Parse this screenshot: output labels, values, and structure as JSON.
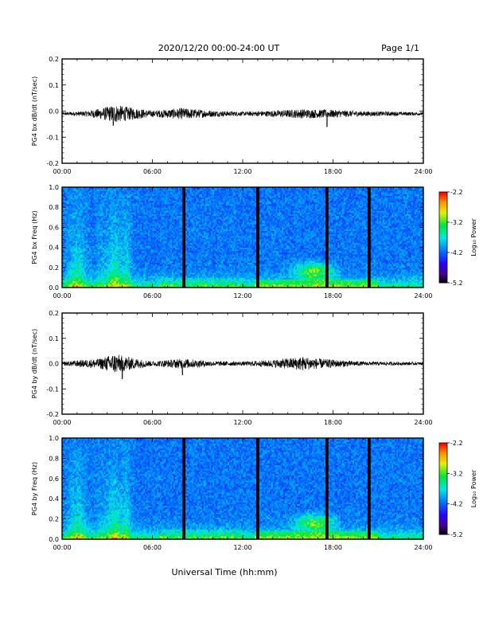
{
  "header": {
    "title": "2020/12/20  00:00-24:00 UT",
    "page": "Page 1/1"
  },
  "footer": {
    "xlabel": "Universal Time (hh:mm)"
  },
  "colorbar": {
    "label": "Log₁₀ Power",
    "ticks": [
      "-2.2",
      "-3.2",
      "-4.2",
      "-5.2"
    ]
  },
  "chart_data": [
    {
      "type": "line",
      "ylabel": "PG4 bx dB/dt (nT/sec)",
      "ylim": [
        -0.2,
        0.2
      ],
      "yticks": [
        "0.2",
        "0.1",
        "0.0",
        "-0.1",
        "-0.2"
      ],
      "xlim": [
        "00:00",
        "24:00"
      ],
      "xticks": [
        "00:00",
        "06:00",
        "12:00",
        "18:00",
        "24:00"
      ],
      "baseline": -0.01,
      "envelope": [
        {
          "t": 0,
          "amp": 0.006
        },
        {
          "t": 1.5,
          "amp": 0.01
        },
        {
          "t": 2.5,
          "amp": 0.02
        },
        {
          "t": 3.5,
          "amp": 0.035
        },
        {
          "t": 4.5,
          "amp": 0.025
        },
        {
          "t": 6,
          "amp": 0.012
        },
        {
          "t": 8,
          "amp": 0.022
        },
        {
          "t": 10,
          "amp": 0.012
        },
        {
          "t": 12,
          "amp": 0.008
        },
        {
          "t": 14,
          "amp": 0.012
        },
        {
          "t": 16,
          "amp": 0.018
        },
        {
          "t": 18,
          "amp": 0.015
        },
        {
          "t": 20,
          "amp": 0.01
        },
        {
          "t": 24,
          "amp": 0.006
        }
      ],
      "spikes": [
        {
          "t": 3.4,
          "v": -0.055
        },
        {
          "t": 17.6,
          "v": -0.06
        }
      ]
    },
    {
      "type": "heatmap",
      "ylabel": "PG4 bx Freq (Hz)",
      "ylim": [
        0.0,
        1.0
      ],
      "yticks": [
        "1.0",
        "0.8",
        "0.6",
        "0.4",
        "0.2",
        "0.0"
      ],
      "xlim": [
        "00:00",
        "24:00"
      ],
      "xticks": [
        "00:00",
        "06:00",
        "12:00",
        "18:00",
        "24:00"
      ],
      "clim": [
        -5.2,
        -2.2
      ],
      "gaps": [
        8.1,
        13.0,
        17.6,
        20.4
      ]
    },
    {
      "type": "line",
      "ylabel": "PG4 by dB/dt (nT/sec)",
      "ylim": [
        -0.2,
        0.2
      ],
      "yticks": [
        "0.2",
        "0.1",
        "0.0",
        "-0.1",
        "-0.2"
      ],
      "xlim": [
        "00:00",
        "24:00"
      ],
      "xticks": [
        "00:00",
        "06:00",
        "12:00",
        "18:00",
        "24:00"
      ],
      "baseline": 0.0,
      "envelope": [
        {
          "t": 0,
          "amp": 0.008
        },
        {
          "t": 1.5,
          "amp": 0.015
        },
        {
          "t": 2.5,
          "amp": 0.02
        },
        {
          "t": 3.5,
          "amp": 0.04
        },
        {
          "t": 4.5,
          "amp": 0.025
        },
        {
          "t": 6,
          "amp": 0.01
        },
        {
          "t": 8,
          "amp": 0.02
        },
        {
          "t": 10,
          "amp": 0.01
        },
        {
          "t": 12,
          "amp": 0.008
        },
        {
          "t": 14,
          "amp": 0.015
        },
        {
          "t": 16,
          "amp": 0.028
        },
        {
          "t": 17,
          "amp": 0.02
        },
        {
          "t": 20,
          "amp": 0.008
        },
        {
          "t": 24,
          "amp": 0.006
        }
      ],
      "spikes": [
        {
          "t": 4.0,
          "v": -0.06
        },
        {
          "t": 8.0,
          "v": -0.045
        }
      ]
    },
    {
      "type": "heatmap",
      "ylabel": "PG4 by Freq (Hz)",
      "ylim": [
        0.0,
        1.0
      ],
      "yticks": [
        "1.0",
        "0.8",
        "0.6",
        "0.4",
        "0.2",
        "0.0"
      ],
      "xlim": [
        "00:00",
        "24:00"
      ],
      "xticks": [
        "00:00",
        "06:00",
        "12:00",
        "18:00",
        "24:00"
      ],
      "clim": [
        -5.2,
        -2.2
      ],
      "gaps": [
        8.1,
        13.0,
        17.6,
        20.4
      ]
    }
  ]
}
